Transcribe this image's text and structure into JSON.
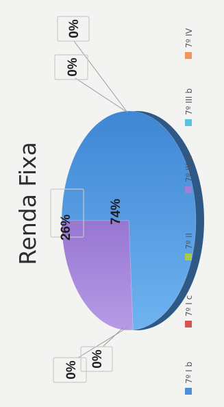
{
  "chart_data": {
    "type": "pie",
    "title": "Renda Fixa",
    "categories": [
      "7º I b",
      "7º I c",
      "7º II",
      "7º III a",
      "7º III b",
      "7º IV"
    ],
    "values": [
      74,
      0,
      0,
      26,
      0,
      0
    ],
    "data_labels": [
      "74%",
      "0%",
      "0%",
      "26%",
      "0%",
      "0%"
    ],
    "legend_position": "right",
    "colors": [
      "#4a90d9",
      "#d9534f",
      "#a8cc4a",
      "#a07fd6",
      "#5bc0de",
      "#f0955a"
    ]
  }
}
